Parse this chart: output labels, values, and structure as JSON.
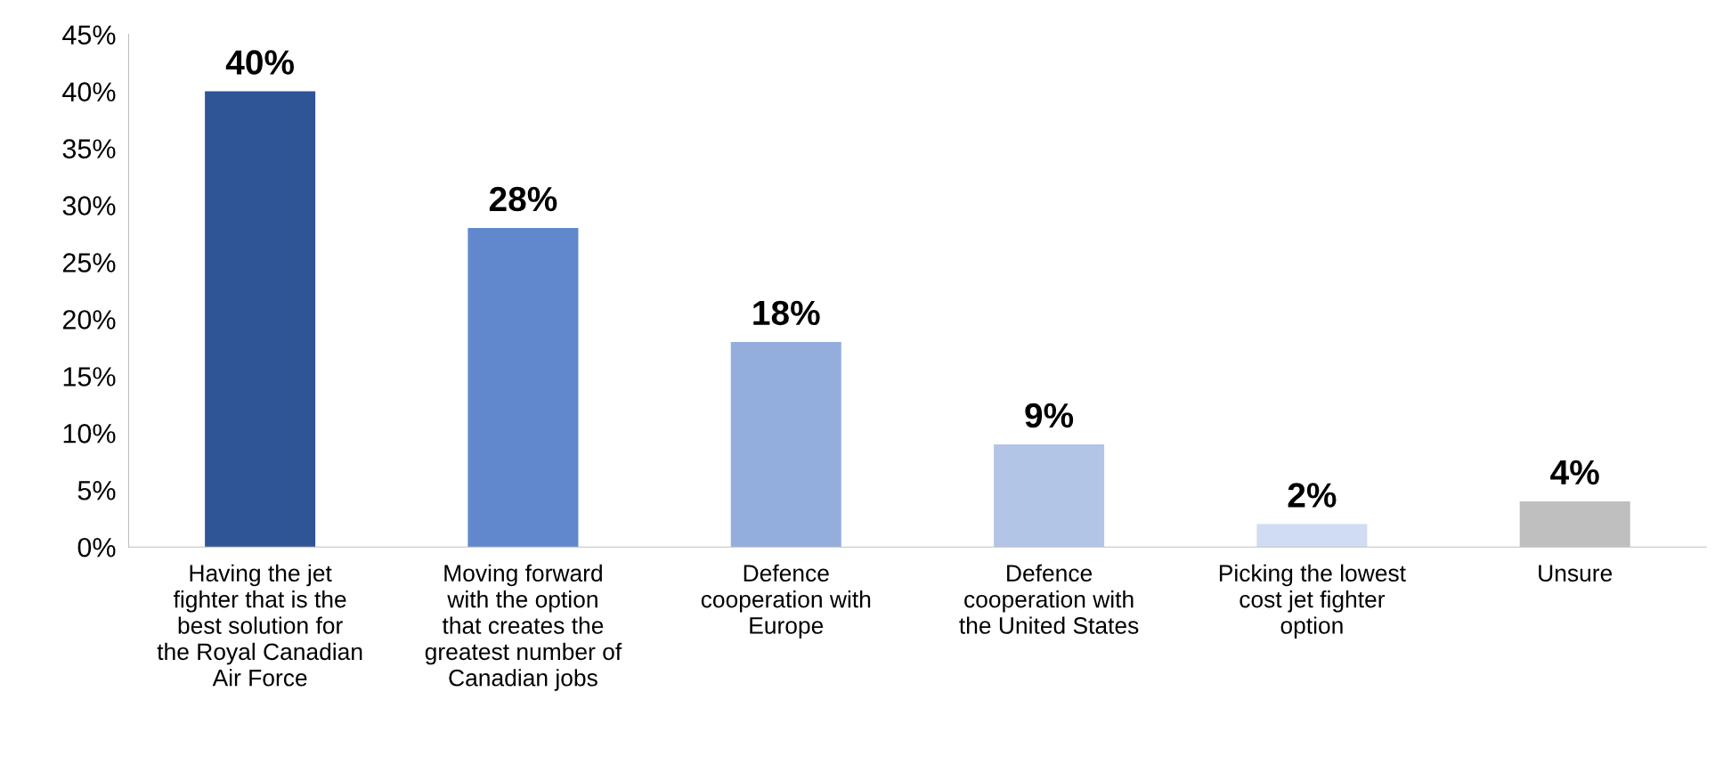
{
  "chart_data": {
    "type": "bar",
    "categories": [
      "Having the jet\nfighter that is the\nbest solution for\nthe Royal Canadian\nAir Force",
      "Moving forward\nwith the option\nthat creates the\ngreatest number of\nCanadian jobs",
      "Defence\ncooperation with\nEurope",
      "Defence\ncooperation with\nthe United States",
      "Picking the lowest\ncost jet fighter\noption",
      "Unsure"
    ],
    "values": [
      40,
      28,
      18,
      9,
      2,
      4
    ],
    "colors": [
      "#2f5597",
      "#6188cd",
      "#93aedd",
      "#b3c5e7",
      "#d0dcf2",
      "#bfbfbf"
    ],
    "value_labels": [
      "40%",
      "28%",
      "18%",
      "9%",
      "2%",
      "4%"
    ],
    "ylim": [
      0,
      45
    ],
    "yticks": [
      {
        "value": 0,
        "label": "0%"
      },
      {
        "value": 5,
        "label": "5%"
      },
      {
        "value": 10,
        "label": "10%"
      },
      {
        "value": 15,
        "label": "15%"
      },
      {
        "value": 20,
        "label": "20%"
      },
      {
        "value": 25,
        "label": "25%"
      },
      {
        "value": 30,
        "label": "30%"
      },
      {
        "value": 35,
        "label": "35%"
      },
      {
        "value": 40,
        "label": "40%"
      },
      {
        "value": 45,
        "label": "45%"
      }
    ],
    "grid": false,
    "legend": false
  }
}
